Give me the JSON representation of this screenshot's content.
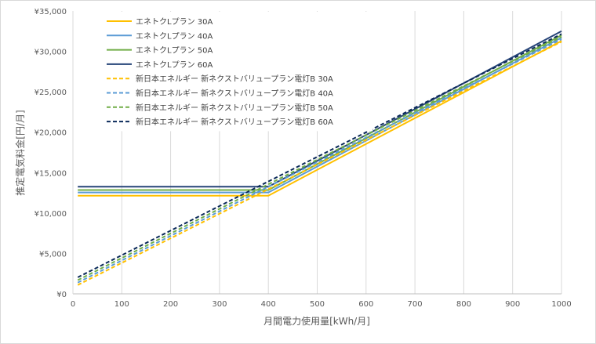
{
  "chart_data": {
    "type": "line",
    "xlabel": "月間電力使用量[kWh/月]",
    "ylabel": "推定電気料金[円/月]",
    "xlim": [
      0,
      1000
    ],
    "ylim": [
      0,
      35000
    ],
    "x_ticks": [
      "0",
      "100",
      "200",
      "300",
      "400",
      "500",
      "600",
      "700",
      "800",
      "900",
      "1000"
    ],
    "y_ticks": [
      "¥0",
      "¥5,000",
      "¥10,000",
      "¥15,000",
      "¥20,000",
      "¥25,000",
      "¥30,000",
      "¥35,000"
    ],
    "grid": "vertical",
    "legend_position": "top-left",
    "series": [
      {
        "name": "エネトクLプラン 30A",
        "color": "#ffc000",
        "dash": false,
        "x": [
          10,
          400,
          650,
          1000
        ],
        "y": [
          12150,
          12150,
          20150,
          31300
        ]
      },
      {
        "name": "エネトクLプラン 40A",
        "color": "#5b9bd5",
        "dash": false,
        "x": [
          10,
          400,
          650,
          1000
        ],
        "y": [
          12550,
          12550,
          20550,
          31700
        ]
      },
      {
        "name": "エネトクLプラン 50A",
        "color": "#70ad47",
        "dash": false,
        "x": [
          10,
          400,
          650,
          1000
        ],
        "y": [
          12850,
          12850,
          20850,
          32000
        ]
      },
      {
        "name": "エネトクLプラン 60A",
        "color": "#264478",
        "dash": false,
        "x": [
          10,
          400,
          650,
          1000
        ],
        "y": [
          13250,
          13250,
          21250,
          32500
        ]
      },
      {
        "name": "新日本エネルギー 新ネクストバリュープラン電灯B 30A",
        "color": "#ffc000",
        "dash": true,
        "x": [
          10,
          1000
        ],
        "y": [
          1100,
          31200
        ]
      },
      {
        "name": "新日本エネルギー 新ネクストバリュープラン電灯B 40A",
        "color": "#5b9bd5",
        "dash": true,
        "x": [
          10,
          1000
        ],
        "y": [
          1400,
          31500
        ]
      },
      {
        "name": "新日本エネルギー 新ネクストバリュープラン電灯B 50A",
        "color": "#70ad47",
        "dash": true,
        "x": [
          10,
          1000
        ],
        "y": [
          1700,
          31800
        ]
      },
      {
        "name": "新日本エネルギー 新ネクストバリュープラン電灯B 60A",
        "color": "#0b2a5a",
        "dash": true,
        "x": [
          10,
          1000
        ],
        "y": [
          2050,
          32150
        ]
      }
    ]
  }
}
